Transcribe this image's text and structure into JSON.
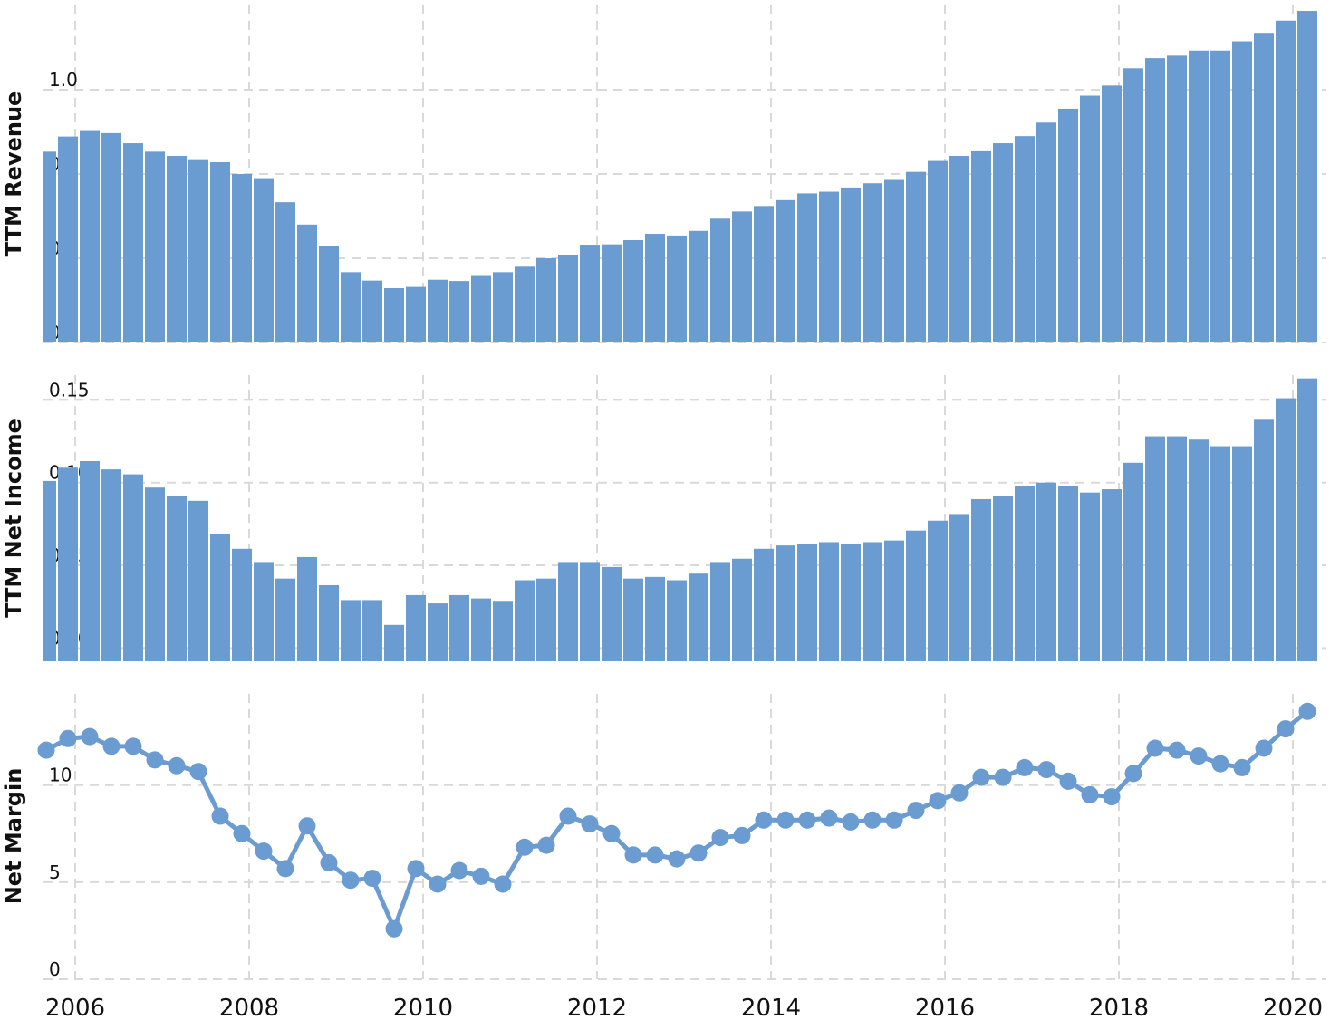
{
  "colors": {
    "series": "#6a9bd1",
    "grid": "#d9d9d9",
    "axis_text": "#111111",
    "background": "#ffffff"
  },
  "x_axis": {
    "ticks": [
      "2006",
      "2008",
      "2010",
      "2012",
      "2014",
      "2016",
      "2018",
      "2020"
    ],
    "grid": true
  },
  "chart_data": [
    {
      "type": "bar",
      "ylabel": "TTM Revenue",
      "ylim": [
        0.4,
        1.2
      ],
      "ytick_labels": [
        "0.4",
        "0.6",
        "0.8",
        "1.0"
      ],
      "yticks": [
        0.4,
        0.6,
        0.8,
        1.0
      ],
      "grid": true,
      "x": [
        "2005-09",
        "2005-12",
        "2006-03",
        "2006-06",
        "2006-09",
        "2006-12",
        "2007-03",
        "2007-06",
        "2007-09",
        "2007-12",
        "2008-03",
        "2008-06",
        "2008-09",
        "2008-12",
        "2009-03",
        "2009-06",
        "2009-09",
        "2009-12",
        "2010-03",
        "2010-06",
        "2010-09",
        "2010-12",
        "2011-03",
        "2011-06",
        "2011-09",
        "2011-12",
        "2012-03",
        "2012-06",
        "2012-09",
        "2012-12",
        "2013-03",
        "2013-06",
        "2013-09",
        "2013-12",
        "2014-03",
        "2014-06",
        "2014-09",
        "2014-12",
        "2015-03",
        "2015-06",
        "2015-09",
        "2015-12",
        "2016-03",
        "2016-06",
        "2016-09",
        "2016-12",
        "2017-03",
        "2017-06",
        "2017-09",
        "2017-12",
        "2018-03",
        "2018-06",
        "2018-09",
        "2018-12",
        "2019-03",
        "2019-06",
        "2019-09",
        "2019-12",
        "2020-03"
      ],
      "values": [
        0.853,
        0.889,
        0.902,
        0.897,
        0.873,
        0.853,
        0.843,
        0.833,
        0.828,
        0.8,
        0.788,
        0.733,
        0.68,
        0.628,
        0.567,
        0.547,
        0.529,
        0.532,
        0.549,
        0.546,
        0.558,
        0.567,
        0.58,
        0.6,
        0.608,
        0.63,
        0.633,
        0.643,
        0.658,
        0.654,
        0.665,
        0.694,
        0.711,
        0.724,
        0.738,
        0.754,
        0.758,
        0.768,
        0.778,
        0.786,
        0.805,
        0.831,
        0.843,
        0.854,
        0.873,
        0.89,
        0.922,
        0.955,
        0.986,
        1.01,
        1.051,
        1.075,
        1.081,
        1.093,
        1.093,
        1.115,
        1.135,
        1.164,
        1.187
      ]
    },
    {
      "type": "bar",
      "ylabel": "TTM Net Income",
      "ylim": [
        -0.008,
        0.165
      ],
      "ytick_labels": [
        "0.00",
        "0.05",
        "0.10",
        "0.15"
      ],
      "yticks": [
        0.0,
        0.05,
        0.1,
        0.15
      ],
      "grid": true,
      "x": [
        "2005-09",
        "2005-12",
        "2006-03",
        "2006-06",
        "2006-09",
        "2006-12",
        "2007-03",
        "2007-06",
        "2007-09",
        "2007-12",
        "2008-03",
        "2008-06",
        "2008-09",
        "2008-12",
        "2009-03",
        "2009-06",
        "2009-09",
        "2009-12",
        "2010-03",
        "2010-06",
        "2010-09",
        "2010-12",
        "2011-03",
        "2011-06",
        "2011-09",
        "2011-12",
        "2012-03",
        "2012-06",
        "2012-09",
        "2012-12",
        "2013-03",
        "2013-06",
        "2013-09",
        "2013-12",
        "2014-03",
        "2014-06",
        "2014-09",
        "2014-12",
        "2015-03",
        "2015-06",
        "2015-09",
        "2015-12",
        "2016-03",
        "2016-06",
        "2016-09",
        "2016-12",
        "2017-03",
        "2017-06",
        "2017-09",
        "2017-12",
        "2018-03",
        "2018-06",
        "2018-09",
        "2018-12",
        "2019-03",
        "2019-06",
        "2019-09",
        "2019-12",
        "2020-03"
      ],
      "values": [
        0.101,
        0.109,
        0.113,
        0.108,
        0.105,
        0.097,
        0.092,
        0.089,
        0.069,
        0.06,
        0.052,
        0.042,
        0.055,
        0.038,
        0.029,
        0.029,
        0.014,
        0.032,
        0.027,
        0.032,
        0.03,
        0.028,
        0.041,
        0.042,
        0.052,
        0.052,
        0.049,
        0.042,
        0.043,
        0.041,
        0.045,
        0.052,
        0.054,
        0.06,
        0.062,
        0.063,
        0.064,
        0.063,
        0.064,
        0.065,
        0.071,
        0.077,
        0.081,
        0.09,
        0.092,
        0.098,
        0.1,
        0.098,
        0.094,
        0.096,
        0.112,
        0.128,
        0.128,
        0.126,
        0.122,
        0.122,
        0.138,
        0.151,
        0.163
      ]
    },
    {
      "type": "line",
      "ylabel": "Net Margin",
      "ylim": [
        0,
        14.7
      ],
      "ytick_labels": [
        "0",
        "5",
        "10"
      ],
      "yticks": [
        0,
        5,
        10
      ],
      "grid": true,
      "markers": true,
      "x": [
        "2005-09",
        "2005-12",
        "2006-03",
        "2006-06",
        "2006-09",
        "2006-12",
        "2007-03",
        "2007-06",
        "2007-09",
        "2007-12",
        "2008-03",
        "2008-06",
        "2008-09",
        "2008-12",
        "2009-03",
        "2009-06",
        "2009-09",
        "2009-12",
        "2010-03",
        "2010-06",
        "2010-09",
        "2010-12",
        "2011-03",
        "2011-06",
        "2011-09",
        "2011-12",
        "2012-03",
        "2012-06",
        "2012-09",
        "2012-12",
        "2013-03",
        "2013-06",
        "2013-09",
        "2013-12",
        "2014-03",
        "2014-06",
        "2014-09",
        "2014-12",
        "2015-03",
        "2015-06",
        "2015-09",
        "2015-12",
        "2016-03",
        "2016-06",
        "2016-09",
        "2016-12",
        "2017-03",
        "2017-06",
        "2017-09",
        "2017-12",
        "2018-03",
        "2018-06",
        "2018-09",
        "2018-12",
        "2019-03",
        "2019-06",
        "2019-09",
        "2019-12",
        "2020-03"
      ],
      "values": [
        11.8,
        12.4,
        12.5,
        12.0,
        12.0,
        11.3,
        11.0,
        10.7,
        8.4,
        7.5,
        6.6,
        5.7,
        7.9,
        6.0,
        5.1,
        5.2,
        2.6,
        5.7,
        4.9,
        5.6,
        5.3,
        4.9,
        6.8,
        6.9,
        8.4,
        8.0,
        7.5,
        6.4,
        6.4,
        6.2,
        6.5,
        7.3,
        7.4,
        8.2,
        8.2,
        8.2,
        8.3,
        8.1,
        8.2,
        8.2,
        8.7,
        9.2,
        9.6,
        10.4,
        10.4,
        10.9,
        10.8,
        10.2,
        9.5,
        9.4,
        10.6,
        11.9,
        11.8,
        11.5,
        11.1,
        10.9,
        11.9,
        12.9,
        13.8
      ]
    }
  ]
}
